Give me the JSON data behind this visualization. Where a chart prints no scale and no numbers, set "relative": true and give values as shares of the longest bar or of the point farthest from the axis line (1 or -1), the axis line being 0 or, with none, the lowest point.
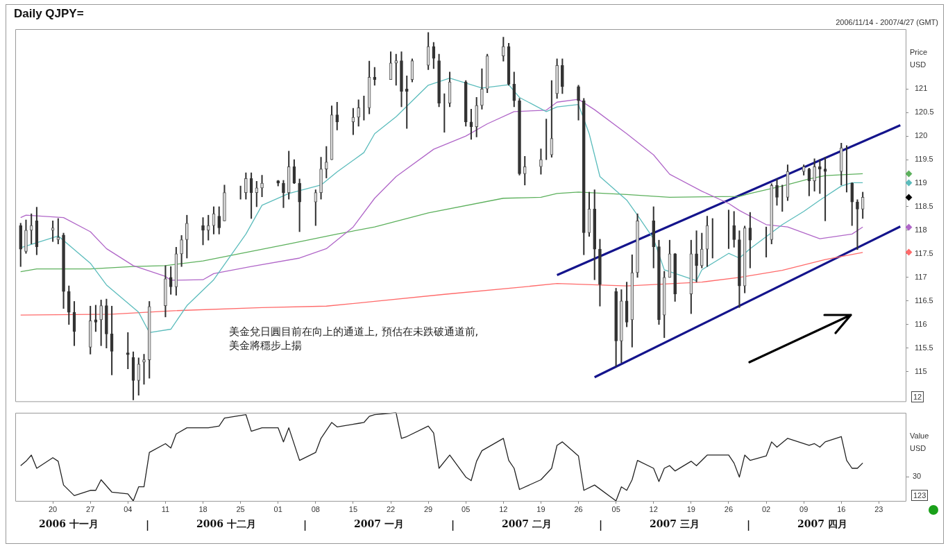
{
  "chart_data": [
    {
      "type": "candlestick",
      "title": "Daily QJPY=",
      "subtitle": "2006/11/14 - 2007/4/27 (GMT)",
      "ylabel": "Price USD",
      "x": [
        "2006-11-14",
        "2006-11-15",
        "2006-11-16",
        "2006-11-17",
        "2006-11-20",
        "2006-11-21",
        "2006-11-22",
        "2006-11-23",
        "2006-11-24",
        "2006-11-27",
        "2006-11-28",
        "2006-11-29",
        "2006-11-30",
        "2006-12-01",
        "2006-12-04",
        "2006-12-05",
        "2006-12-06",
        "2006-12-07",
        "2006-12-08",
        "2006-12-11",
        "2006-12-12",
        "2006-12-13",
        "2006-12-14",
        "2006-12-15",
        "2006-12-18",
        "2006-12-19",
        "2006-12-20",
        "2006-12-21",
        "2006-12-22",
        "2006-12-25",
        "2006-12-26",
        "2006-12-27",
        "2006-12-28",
        "2006-12-29",
        "2007-01-01",
        "2007-01-02",
        "2007-01-03",
        "2007-01-04",
        "2007-01-05",
        "2007-01-08",
        "2007-01-09",
        "2007-01-10",
        "2007-01-11",
        "2007-01-12",
        "2007-01-15",
        "2007-01-16",
        "2007-01-17",
        "2007-01-18",
        "2007-01-19",
        "2007-01-22",
        "2007-01-23",
        "2007-01-24",
        "2007-01-25",
        "2007-01-26",
        "2007-01-29",
        "2007-01-30",
        "2007-01-31",
        "2007-02-01",
        "2007-02-02",
        "2007-02-05",
        "2007-02-06",
        "2007-02-07",
        "2007-02-08",
        "2007-02-09",
        "2007-02-12",
        "2007-02-13",
        "2007-02-14",
        "2007-02-15",
        "2007-02-16",
        "2007-02-19",
        "2007-02-20",
        "2007-02-21",
        "2007-02-22",
        "2007-02-23",
        "2007-02-26",
        "2007-02-27",
        "2007-02-28",
        "2007-03-01",
        "2007-03-02",
        "2007-03-05",
        "2007-03-06",
        "2007-03-07",
        "2007-03-08",
        "2007-03-09",
        "2007-03-12",
        "2007-03-13",
        "2007-03-14",
        "2007-03-15",
        "2007-03-16",
        "2007-03-19",
        "2007-03-20",
        "2007-03-21",
        "2007-03-22",
        "2007-03-23",
        "2007-03-26",
        "2007-03-27",
        "2007-03-28",
        "2007-03-29",
        "2007-03-30",
        "2007-04-02",
        "2007-04-03",
        "2007-04-04",
        "2007-04-05",
        "2007-04-06",
        "2007-04-09",
        "2007-04-10",
        "2007-04-11",
        "2007-04-12",
        "2007-04-13",
        "2007-04-16",
        "2007-04-17",
        "2007-04-18",
        "2007-04-19",
        "2007-04-20"
      ],
      "ohlc": [
        [
          118.1,
          118.15,
          117.23,
          117.6
        ],
        [
          117.55,
          118.22,
          117.51,
          118.0
        ],
        [
          118.0,
          118.35,
          117.71,
          118.1
        ],
        [
          118.2,
          118.49,
          117.48,
          117.65
        ],
        [
          118.0,
          118.2,
          117.76,
          118.05
        ],
        [
          117.8,
          118.25,
          117.71,
          117.85
        ],
        [
          117.9,
          117.94,
          116.34,
          116.7
        ],
        [
          116.7,
          116.82,
          116.0,
          116.26
        ],
        [
          116.26,
          116.49,
          115.55,
          115.85
        ],
        [
          115.52,
          116.39,
          115.37,
          116.08
        ],
        [
          116.1,
          116.41,
          115.85,
          116.05
        ],
        [
          116.1,
          116.52,
          115.55,
          116.4
        ],
        [
          116.4,
          116.54,
          115.5,
          115.8
        ],
        [
          115.8,
          116.39,
          114.93,
          115.43
        ],
        [
          115.4,
          115.83,
          115.06,
          115.36
        ],
        [
          115.3,
          115.42,
          114.4,
          114.81
        ],
        [
          114.81,
          115.29,
          114.5,
          115.16
        ],
        [
          115.2,
          115.37,
          114.73,
          115.25
        ],
        [
          115.25,
          116.49,
          114.86,
          116.38
        ],
        [
          116.4,
          117.25,
          116.16,
          116.97
        ],
        [
          117.0,
          117.23,
          116.64,
          116.8
        ],
        [
          116.8,
          117.64,
          116.62,
          117.5
        ],
        [
          117.5,
          117.89,
          117.23,
          117.8
        ],
        [
          117.8,
          118.32,
          117.41,
          118.15
        ],
        [
          118.1,
          118.27,
          117.69,
          118.0
        ],
        [
          118.0,
          118.32,
          117.79,
          118.1
        ],
        [
          118.1,
          118.5,
          117.92,
          118.35
        ],
        [
          118.3,
          118.5,
          117.92,
          118.05
        ],
        [
          118.2,
          118.96,
          118.2,
          118.8
        ],
        [
          118.8,
          118.94,
          118.66,
          118.8
        ],
        [
          118.8,
          119.22,
          118.66,
          119.1
        ],
        [
          119.1,
          119.22,
          118.25,
          118.8
        ],
        [
          118.8,
          119.04,
          118.5,
          118.9
        ],
        [
          118.9,
          119.17,
          118.71,
          119.0
        ],
        [
          119.05,
          119.06,
          118.94,
          119.0
        ],
        [
          119.0,
          119.06,
          118.48,
          118.8
        ],
        [
          118.8,
          119.68,
          118.66,
          119.35
        ],
        [
          119.35,
          119.5,
          118.99,
          119.0
        ],
        [
          119.0,
          119.09,
          117.97,
          118.6
        ],
        [
          118.6,
          118.86,
          118.1,
          118.8
        ],
        [
          118.8,
          119.55,
          118.66,
          119.3
        ],
        [
          119.3,
          119.78,
          119.11,
          119.45
        ],
        [
          119.5,
          120.64,
          119.5,
          120.45
        ],
        [
          120.45,
          120.72,
          120.13,
          120.3
        ],
        [
          120.3,
          120.59,
          120.03,
          120.4
        ],
        [
          120.4,
          120.77,
          120.21,
          120.6
        ],
        [
          120.6,
          120.85,
          120.34,
          120.6
        ],
        [
          120.6,
          121.59,
          120.47,
          121.25
        ],
        [
          121.25,
          121.46,
          121.08,
          121.2
        ],
        [
          121.2,
          121.79,
          121.2,
          121.55
        ],
        [
          121.55,
          121.74,
          121.08,
          121.6
        ],
        [
          121.6,
          121.79,
          120.62,
          120.95
        ],
        [
          121.0,
          121.28,
          120.16,
          120.95
        ],
        [
          121.2,
          121.64,
          121.15,
          121.6
        ],
        [
          121.5,
          122.2,
          121.41,
          121.9
        ],
        [
          121.9,
          121.99,
          121.43,
          121.65
        ],
        [
          121.6,
          121.74,
          120.62,
          120.7
        ],
        [
          120.7,
          120.9,
          120.08,
          120.7
        ],
        [
          120.7,
          121.36,
          120.62,
          121.15
        ],
        [
          121.15,
          121.18,
          120.21,
          120.3
        ],
        [
          120.3,
          120.57,
          119.93,
          120.2
        ],
        [
          120.2,
          120.82,
          119.98,
          120.65
        ],
        [
          120.65,
          121.43,
          120.57,
          121.0
        ],
        [
          121.0,
          121.74,
          120.92,
          121.7
        ],
        [
          121.7,
          122.1,
          121.59,
          121.9
        ],
        [
          121.9,
          121.97,
          121.08,
          121.1
        ],
        [
          121.1,
          121.36,
          120.62,
          120.75
        ],
        [
          120.75,
          120.8,
          119.17,
          119.2
        ],
        [
          119.2,
          119.57,
          118.96,
          119.35
        ],
        [
          119.35,
          119.73,
          119.19,
          119.5
        ],
        [
          119.5,
          120.36,
          119.5,
          119.5
        ],
        [
          119.6,
          121.18,
          119.55,
          119.95
        ],
        [
          120.9,
          121.64,
          120.8,
          121.5
        ],
        [
          121.5,
          121.64,
          120.9,
          121.05
        ],
        [
          121.05,
          121.08,
          120.34,
          120.75
        ],
        [
          120.75,
          120.8,
          117.48,
          117.95
        ],
        [
          117.95,
          118.81,
          117.87,
          118.45
        ],
        [
          118.45,
          118.86,
          116.95,
          117.6
        ],
        [
          117.6,
          117.81,
          116.39,
          116.85
        ],
        [
          116.7,
          116.77,
          115.11,
          115.65
        ],
        [
          115.65,
          116.74,
          115.19,
          116.5
        ],
        [
          116.5,
          116.9,
          115.95,
          116.05
        ],
        [
          116.1,
          117.48,
          115.52,
          117.1
        ],
        [
          117.1,
          118.35,
          117.0,
          118.2
        ],
        [
          118.2,
          118.5,
          117.2,
          117.65
        ],
        [
          117.65,
          117.79,
          116.0,
          116.1
        ],
        [
          116.2,
          117.13,
          115.72,
          117.0
        ],
        [
          117.0,
          117.79,
          117.0,
          117.5
        ],
        [
          117.5,
          117.51,
          116.49,
          116.65
        ],
        [
          116.65,
          117.79,
          116.23,
          117.5
        ],
        [
          117.5,
          117.99,
          116.9,
          117.25
        ],
        [
          117.25,
          117.94,
          117.2,
          117.6
        ],
        [
          117.6,
          118.3,
          117.23,
          118.1
        ],
        [
          118.1,
          118.25,
          117.41,
          118.1
        ],
        [
          118.1,
          118.43,
          117.61,
          118.1
        ],
        [
          118.1,
          118.4,
          117.64,
          117.8
        ],
        [
          117.8,
          117.99,
          116.36,
          116.82
        ],
        [
          116.82,
          118.09,
          116.67,
          118.05
        ],
        [
          118.05,
          118.38,
          117.2,
          117.79
        ],
        [
          117.8,
          118.07,
          117.43,
          117.8
        ],
        [
          117.8,
          118.99,
          117.71,
          118.95
        ],
        [
          118.95,
          119.09,
          118.53,
          118.7
        ],
        [
          118.7,
          118.96,
          118.4,
          118.7
        ],
        [
          118.7,
          119.39,
          118.63,
          119.25
        ],
        [
          119.25,
          119.39,
          119.17,
          119.35
        ],
        [
          119.3,
          119.32,
          118.73,
          119.05
        ],
        [
          119.05,
          119.52,
          118.83,
          119.35
        ],
        [
          119.35,
          119.5,
          118.78,
          119.3
        ],
        [
          119.3,
          119.55,
          118.2,
          119.25
        ],
        [
          119.25,
          119.85,
          118.96,
          119.75
        ],
        [
          119.75,
          119.8,
          118.81,
          119.75
        ],
        [
          119.0,
          119.01,
          118.1,
          118.6
        ],
        [
          118.6,
          118.65,
          117.59,
          118.45
        ],
        [
          118.45,
          118.81,
          118.25,
          118.7
        ]
      ],
      "series": [
        {
          "type": "line",
          "color": "#5bbcbc",
          "x": [
            "2006-11-14",
            "2006-11-21",
            "2006-11-27",
            "2006-11-30",
            "2006-12-06",
            "2006-12-08",
            "2006-12-12",
            "2006-12-15",
            "2006-12-20",
            "2006-12-26",
            "2006-12-29",
            "2007-01-03",
            "2007-01-09",
            "2007-01-12",
            "2007-01-17",
            "2007-01-19",
            "2007-01-23",
            "2007-01-29",
            "2007-02-02",
            "2007-02-08",
            "2007-02-13",
            "2007-02-15",
            "2007-02-20",
            "2007-02-22",
            "2007-02-26",
            "2007-02-28",
            "2007-03-02",
            "2007-03-07",
            "2007-03-09",
            "2007-03-12",
            "2007-03-14",
            "2007-03-20",
            "2007-03-21",
            "2007-03-26",
            "2007-03-28",
            "2007-03-30",
            "2007-04-05",
            "2007-04-09",
            "2007-04-12",
            "2007-04-16",
            "2007-04-18",
            "2007-04-20"
          ],
          "values": [
            117.63,
            117.88,
            117.3,
            116.84,
            116.26,
            115.83,
            115.9,
            116.4,
            116.95,
            117.92,
            118.53,
            118.78,
            118.96,
            119.24,
            119.65,
            120.05,
            120.41,
            121.08,
            121.23,
            121.02,
            121.09,
            120.82,
            120.52,
            120.62,
            120.67,
            120.05,
            119.14,
            118.64,
            118.32,
            117.82,
            117.16,
            116.93,
            117.16,
            117.51,
            117.41,
            117.61,
            118.12,
            118.4,
            118.64,
            118.94,
            119.01,
            119.01
          ]
        },
        {
          "type": "line",
          "color": "#b066c8",
          "x": [
            "2006-11-14",
            "2006-11-15",
            "2006-11-22",
            "2006-11-27",
            "2006-11-30",
            "2006-12-05",
            "2006-12-11",
            "2006-12-12",
            "2006-12-18",
            "2006-12-20",
            "2006-12-27",
            "2007-01-05",
            "2007-01-10",
            "2007-01-15",
            "2007-01-19",
            "2007-01-23",
            "2007-01-30",
            "2007-02-05",
            "2007-02-09",
            "2007-02-14",
            "2007-02-20",
            "2007-02-22",
            "2007-02-26",
            "2007-03-01",
            "2007-03-07",
            "2007-03-12",
            "2007-03-15",
            "2007-03-21",
            "2007-03-26",
            "2007-03-28",
            "2007-04-02",
            "2007-04-06",
            "2007-04-12",
            "2007-04-18",
            "2007-04-20"
          ],
          "values": [
            118.27,
            118.32,
            118.27,
            117.97,
            117.61,
            117.25,
            117.02,
            116.94,
            116.95,
            117.08,
            117.23,
            117.41,
            117.61,
            118.07,
            118.68,
            119.14,
            119.72,
            120.0,
            120.26,
            120.52,
            120.55,
            120.72,
            120.78,
            120.56,
            120.05,
            119.6,
            119.19,
            118.83,
            118.57,
            118.42,
            118.12,
            118.07,
            117.82,
            117.92,
            118.07
          ]
        },
        {
          "type": "line",
          "color": "#5cb05c",
          "x": [
            "2006-11-14",
            "2006-11-17",
            "2006-11-27",
            "2006-12-05",
            "2006-12-11",
            "2006-12-18",
            "2006-12-26",
            "2007-01-03",
            "2007-01-12",
            "2007-01-19",
            "2007-01-29",
            "2007-02-12",
            "2007-02-19",
            "2007-02-22",
            "2007-02-26",
            "2007-03-07",
            "2007-03-15",
            "2007-03-28",
            "2007-03-30",
            "2007-04-05",
            "2007-04-10",
            "2007-04-13",
            "2007-04-20"
          ],
          "values": [
            117.12,
            117.18,
            117.18,
            117.23,
            117.25,
            117.35,
            117.53,
            117.71,
            117.92,
            118.07,
            118.37,
            118.68,
            118.7,
            118.78,
            118.81,
            118.76,
            118.7,
            118.72,
            118.78,
            118.94,
            119.09,
            119.16,
            119.2
          ]
        },
        {
          "type": "line",
          "color": "#ff6a6a",
          "x": [
            "2006-11-14",
            "2006-12-01",
            "2006-12-12",
            "2006-12-29",
            "2007-01-10",
            "2007-01-19",
            "2007-02-01",
            "2007-02-15",
            "2007-02-22",
            "2007-03-07",
            "2007-03-21",
            "2007-03-28",
            "2007-04-05",
            "2007-04-13",
            "2007-04-20"
          ],
          "values": [
            116.2,
            116.22,
            116.29,
            116.36,
            116.39,
            116.49,
            116.64,
            116.79,
            116.87,
            116.82,
            116.9,
            117.0,
            117.15,
            117.38,
            117.53
          ]
        },
        {
          "type": "line",
          "color": "#14148c",
          "x": [
            "2007-02-22",
            "2007-04-27"
          ],
          "values": [
            117.05,
            120.23
          ]
        },
        {
          "type": "line",
          "color": "#14148c",
          "x": [
            "2007-03-01",
            "2007-04-27"
          ],
          "values": [
            114.88,
            118.08
          ]
        }
      ],
      "xlim": [
        "2006-11-13",
        "2007-04-28"
      ],
      "ylim": [
        114.37,
        122.27
      ],
      "yticks": [
        115,
        115.5,
        116,
        116.5,
        117,
        117.5,
        118,
        118.5,
        119,
        119.5,
        120,
        120.5,
        121
      ],
      "tick_labels": "y",
      "marker": "none",
      "annotations": [
        "美金兌日圓目前在向上的通道上, 預估在未跌破通道前,\n美金將穩步上揚",
        "12"
      ]
    },
    {
      "type": "line",
      "ylabel": "Value USD",
      "series": [
        {
          "color": "#222222",
          "x": [
            "2006-11-14",
            "2006-11-15",
            "2006-11-16",
            "2006-11-17",
            "2006-11-20",
            "2006-11-21",
            "2006-11-22",
            "2006-11-24",
            "2006-11-27",
            "2006-11-28",
            "2006-11-29",
            "2006-12-01",
            "2006-12-04",
            "2006-12-05",
            "2006-12-06",
            "2006-12-07",
            "2006-12-08",
            "2006-12-11",
            "2006-12-12",
            "2006-12-13",
            "2006-12-15",
            "2006-12-19",
            "2006-12-21",
            "2006-12-22",
            "2006-12-26",
            "2006-12-27",
            "2006-12-29",
            "2007-01-01",
            "2007-01-02",
            "2007-01-03",
            "2007-01-05",
            "2007-01-08",
            "2007-01-09",
            "2007-01-11",
            "2007-01-12",
            "2007-01-16",
            "2007-01-17",
            "2007-01-18",
            "2007-01-19",
            "2007-01-23",
            "2007-01-24",
            "2007-01-25",
            "2007-01-29",
            "2007-01-30",
            "2007-01-31",
            "2007-02-02",
            "2007-02-05",
            "2007-02-06",
            "2007-02-07",
            "2007-02-08",
            "2007-02-12",
            "2007-02-13",
            "2007-02-14",
            "2007-02-15",
            "2007-02-19",
            "2007-02-21",
            "2007-02-22",
            "2007-02-23",
            "2007-02-26",
            "2007-02-27",
            "2007-03-01",
            "2007-03-05",
            "2007-03-06",
            "2007-03-07",
            "2007-03-08",
            "2007-03-09",
            "2007-03-12",
            "2007-03-13",
            "2007-03-14",
            "2007-03-15",
            "2007-03-16",
            "2007-03-19",
            "2007-03-20",
            "2007-03-22",
            "2007-03-26",
            "2007-03-27",
            "2007-03-28",
            "2007-03-29",
            "2007-03-30",
            "2007-04-02",
            "2007-04-03",
            "2007-04-04",
            "2007-04-06",
            "2007-04-10",
            "2007-04-11",
            "2007-04-12",
            "2007-04-13",
            "2007-04-16",
            "2007-04-17",
            "2007-04-18",
            "2007-04-19",
            "2007-04-20"
          ],
          "values": [
            0.4,
            0.45,
            0.52,
            0.37,
            0.49,
            0.45,
            0.18,
            0.06,
            0.12,
            0.12,
            0.24,
            0.1,
            0.08,
            0,
            0.16,
            0.16,
            0.55,
            0.65,
            0.6,
            0.76,
            0.83,
            0.83,
            0.85,
            0.94,
            0.98,
            0.79,
            0.83,
            0.83,
            0.67,
            0.83,
            0.46,
            0.55,
            0.71,
            0.89,
            0.84,
            0.88,
            0.89,
            0.96,
            0.98,
            1,
            0.71,
            0.73,
            0.85,
            0.77,
            0.37,
            0.52,
            0.27,
            0.23,
            0.45,
            0.57,
            0.71,
            0.46,
            0.37,
            0.13,
            0.24,
            0.37,
            0.63,
            0.67,
            0.51,
            0.12,
            0.18,
            0,
            0.16,
            0.12,
            0.24,
            0.46,
            0.37,
            0.22,
            0.37,
            0.4,
            0.34,
            0.45,
            0.4,
            0.52,
            0.52,
            0.43,
            0.27,
            0.52,
            0.46,
            0.51,
            0.67,
            0.61,
            0.71,
            0.63,
            0.65,
            0.61,
            0.67,
            0.73,
            0.46,
            0.37,
            0.37,
            0.43
          ]
        }
      ],
      "relative": true,
      "xlim": [
        "2006-11-13",
        "2007-04-28"
      ],
      "xticks": [
        {
          "value": "2006-11-20",
          "label": "20"
        },
        {
          "value": "2006-11-27",
          "label": "27"
        },
        {
          "value": "2006-12-04",
          "label": "04"
        },
        {
          "value": "2006-12-11",
          "label": "11"
        },
        {
          "value": "2006-12-18",
          "label": "18"
        },
        {
          "value": "2006-12-25",
          "label": "25"
        },
        {
          "value": "2007-01-01",
          "label": "01"
        },
        {
          "value": "2007-01-08",
          "label": "08"
        },
        {
          "value": "2007-01-15",
          "label": "15"
        },
        {
          "value": "2007-01-22",
          "label": "22"
        },
        {
          "value": "2007-01-29",
          "label": "29"
        },
        {
          "value": "2007-02-05",
          "label": "05"
        },
        {
          "value": "2007-02-12",
          "label": "12"
        },
        {
          "value": "2007-02-19",
          "label": "19"
        },
        {
          "value": "2007-02-26",
          "label": "26"
        },
        {
          "value": "2007-03-05",
          "label": "05"
        },
        {
          "value": "2007-03-12",
          "label": "12"
        },
        {
          "value": "2007-03-19",
          "label": "19"
        },
        {
          "value": "2007-03-26",
          "label": "26"
        },
        {
          "value": "2007-04-02",
          "label": "02"
        },
        {
          "value": "2007-04-09",
          "label": "09"
        },
        {
          "value": "2007-04-16",
          "label": "16"
        },
        {
          "value": "2007-04-23",
          "label": "23"
        }
      ],
      "marker": "none",
      "annotations": [
        "2006 十一月",
        "|",
        "2006 十二月",
        "|",
        "2007 一月",
        "|",
        "2007 二月",
        "|",
        "2007 三月",
        "|",
        "2007 四月",
        "30",
        "123"
      ]
    }
  ]
}
